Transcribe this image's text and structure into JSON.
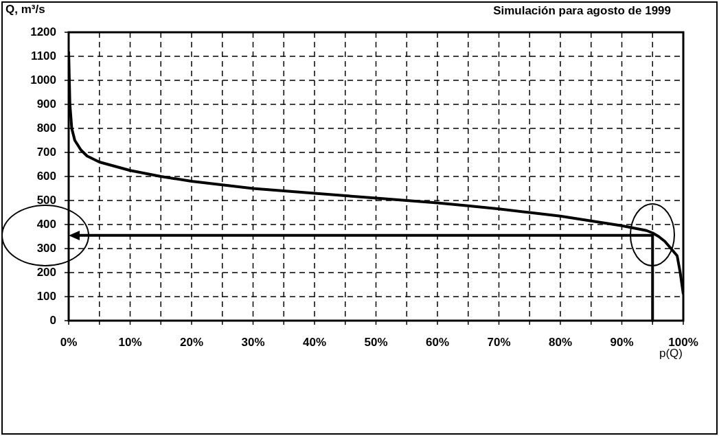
{
  "chart_data": {
    "type": "line",
    "title": "Simulación para agosto de 1999",
    "ylabel": "Q, m³/s",
    "xlabel": "p(Q)",
    "x": [
      0,
      0.2,
      0.5,
      1,
      2,
      3,
      5,
      10,
      15,
      20,
      25,
      30,
      35,
      40,
      45,
      50,
      55,
      60,
      65,
      70,
      75,
      80,
      85,
      90,
      92,
      94,
      95,
      96,
      97,
      98,
      99,
      99.5,
      100
    ],
    "series": [
      {
        "color": "#000000",
        "values": [
          1120,
          900,
          800,
          750,
          710,
          685,
          660,
          625,
          600,
          580,
          565,
          550,
          540,
          530,
          520,
          510,
          500,
          490,
          478,
          465,
          450,
          435,
          415,
          395,
          385,
          375,
          365,
          350,
          330,
          300,
          270,
          200,
          110
        ]
      }
    ],
    "xlim": [
      0,
      100
    ],
    "xticks": [
      {
        "value": 0,
        "label": "0%"
      },
      {
        "value": 5,
        "label": null
      },
      {
        "value": 10,
        "label": "10%"
      },
      {
        "value": 15,
        "label": null
      },
      {
        "value": 20,
        "label": "20%"
      },
      {
        "value": 25,
        "label": null
      },
      {
        "value": 30,
        "label": "30%"
      },
      {
        "value": 35,
        "label": null
      },
      {
        "value": 40,
        "label": "40%"
      },
      {
        "value": 45,
        "label": null
      },
      {
        "value": 50,
        "label": "50%"
      },
      {
        "value": 55,
        "label": null
      },
      {
        "value": 60,
        "label": "60%"
      },
      {
        "value": 65,
        "label": null
      },
      {
        "value": 70,
        "label": "70%"
      },
      {
        "value": 75,
        "label": null
      },
      {
        "value": 80,
        "label": "80%"
      },
      {
        "value": 85,
        "label": null
      },
      {
        "value": 90,
        "label": "90%"
      },
      {
        "value": 95,
        "label": null
      },
      {
        "value": 100,
        "label": "100%"
      }
    ],
    "ylim": [
      0,
      1200
    ],
    "yticks": [
      0,
      100,
      200,
      300,
      400,
      500,
      600,
      700,
      800,
      900,
      1000,
      1100,
      1200
    ],
    "ref_lines": [
      {
        "axis": "x",
        "value": 95,
        "color": "#000000"
      },
      {
        "axis": "y",
        "value": 355,
        "color": "#000000"
      }
    ],
    "grid": true,
    "marker": "none",
    "line_style": "solid",
    "legend": false
  }
}
